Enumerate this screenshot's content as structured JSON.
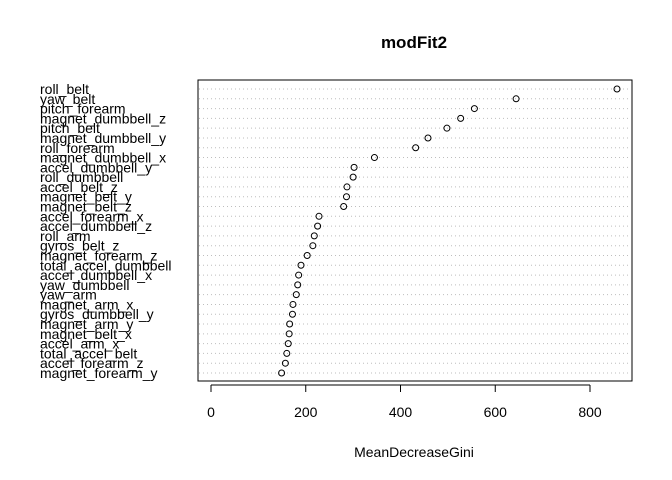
{
  "chart_data": {
    "type": "scatter",
    "title": "modFit2",
    "xlabel": "MeanDecreaseGini",
    "ylabel": "",
    "xlim": [
      -22,
      880
    ],
    "xticks": [
      0,
      200,
      400,
      600,
      800
    ],
    "grid": "dotted horizontal",
    "categories": [
      "roll_belt",
      "yaw_belt",
      "pitch_forearm",
      "magnet_dumbbell_z",
      "pitch_belt",
      "magnet_dumbbell_y",
      "roll_forearm",
      "magnet_dumbbell_x",
      "accel_dumbbell_y",
      "roll_dumbbell",
      "accel_belt_z",
      "magnet_belt_y",
      "magnet_belt_z",
      "accel_forearm_x",
      "accel_dumbbell_z",
      "roll_arm",
      "gyros_belt_z",
      "magnet_forearm_z",
      "total_accel_dumbbell",
      "accel_dumbbell_x",
      "yaw_dumbbell",
      "yaw_arm",
      "magnet_arm_x",
      "gyros_dumbbell_y",
      "magnet_arm_y",
      "magnet_belt_x",
      "accel_arm_x",
      "total_accel_belt",
      "accel_forearm_z",
      "magnet_forearm_y"
    ],
    "values": [
      857,
      644,
      556,
      527,
      498,
      458,
      432,
      345,
      302,
      300,
      287,
      286,
      280,
      228,
      225,
      218,
      215,
      203,
      190,
      185,
      183,
      180,
      173,
      172,
      166,
      165,
      163,
      160,
      157,
      149
    ]
  }
}
